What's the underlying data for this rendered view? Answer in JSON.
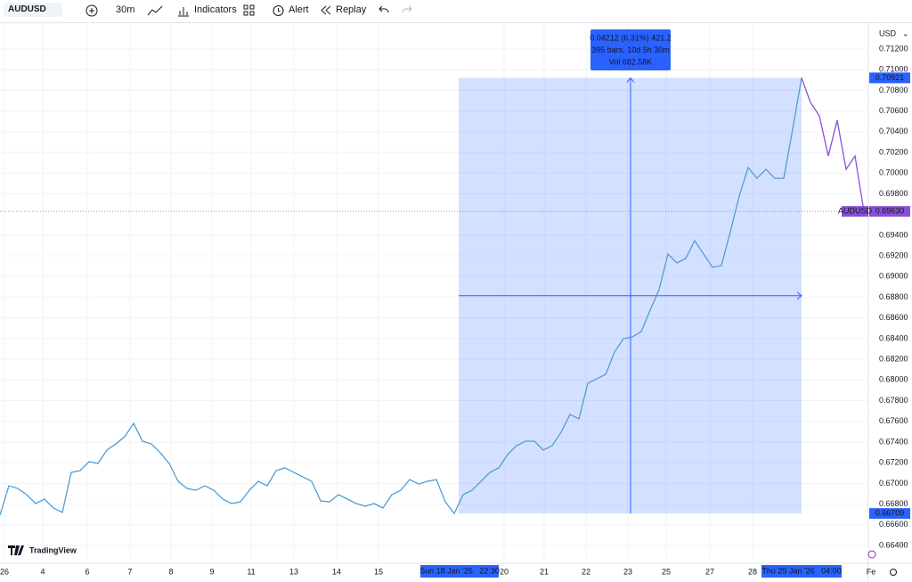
{
  "toolbar": {
    "symbol": "AUDUSD",
    "interval": "30m",
    "indicators": "Indicators",
    "alert": "Alert",
    "replay": "Replay"
  },
  "chart_data": {
    "type": "line",
    "currency": "USD",
    "watermark": "TradingView",
    "series": [
      {
        "color": "#4f9ed6",
        "values": [
          0.66693,
          0.66977,
          0.66951,
          0.66891,
          0.66805,
          0.66848,
          0.66762,
          0.66719,
          0.67106,
          0.67124,
          0.6721,
          0.67193,
          0.67322,
          0.67382,
          0.67451,
          0.6758,
          0.67408,
          0.67382,
          0.67296,
          0.67193,
          0.6702,
          0.66951,
          0.66934,
          0.66977,
          0.66934,
          0.66848,
          0.66805,
          0.66822,
          0.66934,
          0.6702,
          0.66977,
          0.67124,
          0.6715,
          0.67106,
          0.67063,
          0.6702,
          0.66831,
          0.66822,
          0.66891,
          0.66848,
          0.66805,
          0.66779,
          0.66805,
          0.66762,
          0.66891,
          0.66934,
          0.67037,
          0.66994,
          0.6702,
          0.67037,
          0.66822,
          0.66709,
          0.66891,
          0.66934,
          0.6702,
          0.67106,
          0.6715,
          0.67279,
          0.67365,
          0.67408,
          0.67408,
          0.67322,
          0.67365,
          0.67494,
          0.67667,
          0.67624,
          0.67968,
          0.68011,
          0.68054,
          0.6827,
          0.68399,
          0.68416,
          0.68468,
          0.68675,
          0.68873,
          0.69218,
          0.69132,
          0.69175,
          0.69347,
          0.69218,
          0.69089,
          0.69106,
          0.69433,
          0.69778,
          0.70054,
          0.6995,
          0.70037,
          0.6995,
          0.6995,
          0.70424,
          0.70921,
          null,
          null,
          null,
          null,
          null,
          null,
          null
        ]
      },
      {
        "color": "#8a4fd6",
        "values": [
          null,
          null,
          null,
          null,
          null,
          null,
          null,
          null,
          null,
          null,
          null,
          null,
          null,
          null,
          null,
          null,
          null,
          null,
          null,
          null,
          null,
          null,
          null,
          null,
          null,
          null,
          null,
          null,
          null,
          null,
          null,
          null,
          null,
          null,
          null,
          null,
          null,
          null,
          null,
          null,
          null,
          null,
          null,
          null,
          null,
          null,
          null,
          null,
          null,
          null,
          null,
          null,
          null,
          null,
          null,
          null,
          null,
          null,
          null,
          null,
          null,
          null,
          null,
          null,
          null,
          null,
          null,
          null,
          null,
          null,
          null,
          null,
          null,
          null,
          null,
          null,
          null,
          null,
          null,
          null,
          null,
          null,
          null,
          null,
          null,
          null,
          null,
          null,
          null,
          null,
          0.70921,
          0.70683,
          0.70554,
          0.70166,
          0.70511,
          0.70037,
          0.70166,
          0.6963
        ]
      }
    ],
    "ylim": [
      0.664,
      0.712
    ],
    "yticks": [
      {
        "value": 0.664,
        "label": "0.66400"
      },
      {
        "value": 0.666,
        "label": "0.66600"
      },
      {
        "value": 0.668,
        "label": "0.66800"
      },
      {
        "value": 0.67,
        "label": "0.67000"
      },
      {
        "value": 0.672,
        "label": "0.67200"
      },
      {
        "value": 0.674,
        "label": "0.67400"
      },
      {
        "value": 0.676,
        "label": "0.67600"
      },
      {
        "value": 0.678,
        "label": "0.67800"
      },
      {
        "value": 0.68,
        "label": "0.68000"
      },
      {
        "value": 0.682,
        "label": "0.68200"
      },
      {
        "value": 0.684,
        "label": "0.68400"
      },
      {
        "value": 0.686,
        "label": "0.68600"
      },
      {
        "value": 0.688,
        "label": "0.68800"
      },
      {
        "value": 0.69,
        "label": "0.69000"
      },
      {
        "value": 0.692,
        "label": "0.69200"
      },
      {
        "value": 0.694,
        "label": "0.69400"
      },
      {
        "value": 0.698,
        "label": "0.69800"
      },
      {
        "value": 0.7,
        "label": "0.70000"
      },
      {
        "value": 0.702,
        "label": "0.70200"
      },
      {
        "value": 0.704,
        "label": "0.70400"
      },
      {
        "value": 0.706,
        "label": "0.70600"
      },
      {
        "value": 0.708,
        "label": "0.70800"
      },
      {
        "value": 0.71,
        "label": "0.71000"
      },
      {
        "value": 0.712,
        "label": "0.71200"
      }
    ],
    "time_labels": [
      "26",
      "4",
      "6",
      "7",
      "8",
      "9",
      "11",
      "13",
      "14",
      "15",
      "20",
      "21",
      "22",
      "23",
      "25",
      "27",
      "28",
      "Fe"
    ],
    "range_high": {
      "value": 0.70921,
      "label": "0.70921"
    },
    "range_low": {
      "value": 0.66709,
      "label": "0.66709"
    },
    "last_price": {
      "symbol": "AUDUSD",
      "value": 0.6963,
      "label": "0.69630"
    },
    "measure": [
      "0.04212 (6.31%) 421.2",
      "395 bars, 10d 5h 30m",
      "Vol 682.58K"
    ],
    "crosshair_labels": [
      "Sun 18 Jan '26   22:30",
      "Thu 29 Jan '26   04:00"
    ]
  }
}
